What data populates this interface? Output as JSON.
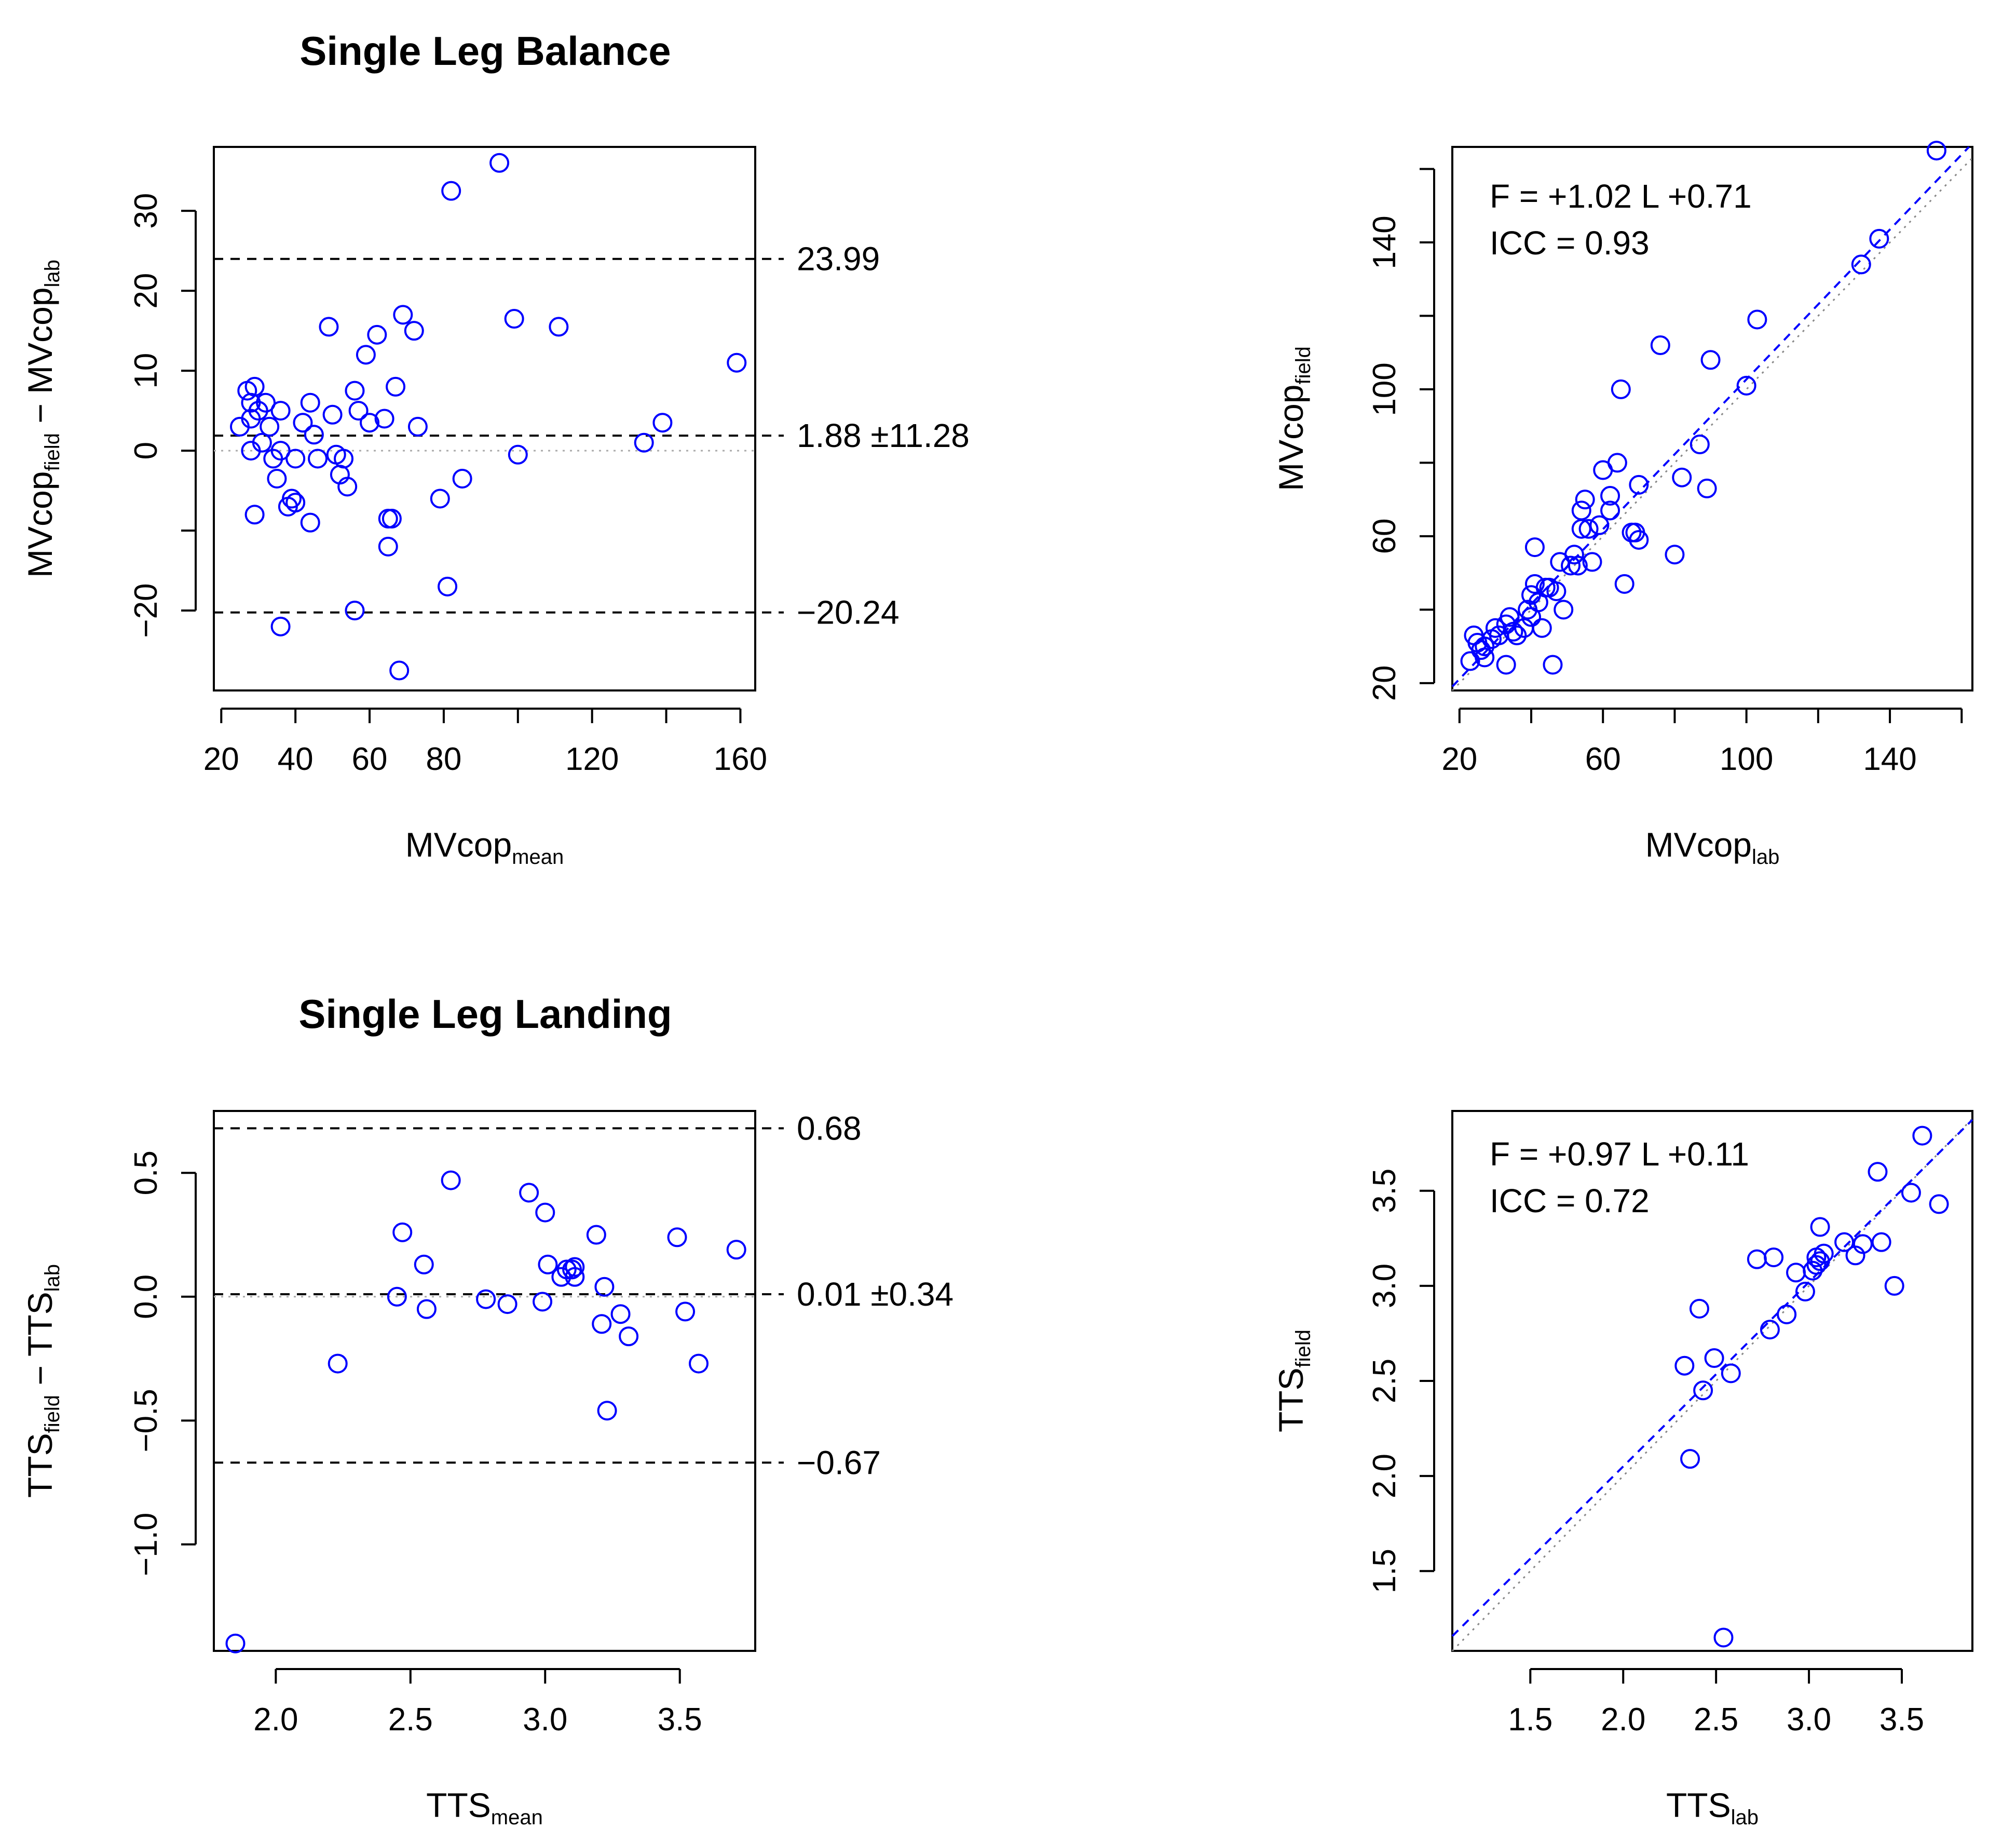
{
  "chart_data": [
    {
      "type": "scatter",
      "title": "Single Leg Balance",
      "xlabel": {
        "main": "MVcop",
        "sub": "mean"
      },
      "ylabel": {
        "main1": "MVcop",
        "sub1": "field",
        "sep": " − ",
        "main2": "MVcop",
        "sub2": "lab"
      },
      "xlim": [
        18,
        164
      ],
      "ylim": [
        -30,
        38
      ],
      "x_ticks": [
        20,
        40,
        60,
        80,
        120,
        160
      ],
      "x_tick_marks": [
        20,
        40,
        60,
        80,
        100,
        120,
        140,
        160
      ],
      "y_ticks": [
        -20,
        -10,
        0,
        10,
        20,
        30
      ],
      "y_tick_labels": [
        "−20",
        "",
        "0",
        "10",
        "20",
        "30"
      ],
      "grid": false,
      "reference_lines": [
        {
          "y": 23.99,
          "label": "23.99",
          "style": "dashed"
        },
        {
          "y": 1.88,
          "label": "1.88 ±11.28",
          "style": "dashed"
        },
        {
          "y": -20.24,
          "label": "−20.24",
          "style": "dashed"
        },
        {
          "y": 0,
          "label": "",
          "style": "dotted"
        }
      ],
      "series": [
        {
          "color": "#0000ff",
          "marker": "open-circle",
          "points": [
            [
              25,
              3
            ],
            [
              27,
              7.5
            ],
            [
              28,
              0
            ],
            [
              28,
              4
            ],
            [
              28,
              6
            ],
            [
              29,
              8
            ],
            [
              29,
              -8
            ],
            [
              30,
              5
            ],
            [
              31,
              1
            ],
            [
              32,
              6
            ],
            [
              33,
              3
            ],
            [
              34,
              -1
            ],
            [
              35,
              -3.5
            ],
            [
              36,
              5
            ],
            [
              36,
              0
            ],
            [
              36,
              -22
            ],
            [
              38,
              -7
            ],
            [
              39,
              -6
            ],
            [
              40,
              -6.5
            ],
            [
              40,
              -1
            ],
            [
              42,
              3.5
            ],
            [
              44,
              6
            ],
            [
              44,
              -9
            ],
            [
              45,
              2
            ],
            [
              46,
              -1
            ],
            [
              49,
              15.5
            ],
            [
              50,
              4.5
            ],
            [
              51,
              -0.5
            ],
            [
              52,
              -3
            ],
            [
              53,
              -1
            ],
            [
              54,
              -4.5
            ],
            [
              56,
              7.5
            ],
            [
              56,
              -20
            ],
            [
              57,
              5
            ],
            [
              59,
              12
            ],
            [
              60,
              3.5
            ],
            [
              62,
              14.5
            ],
            [
              64,
              4
            ],
            [
              65,
              -8.5
            ],
            [
              65,
              -12
            ],
            [
              66,
              -8.5
            ],
            [
              67,
              8
            ],
            [
              68,
              -27.5
            ],
            [
              69,
              17
            ],
            [
              72,
              15
            ],
            [
              73,
              3
            ],
            [
              79,
              -6
            ],
            [
              81,
              -17
            ],
            [
              82,
              32.5
            ],
            [
              85,
              -3.5
            ],
            [
              95,
              36
            ],
            [
              99,
              16.5
            ],
            [
              100,
              -0.5
            ],
            [
              111,
              15.5
            ],
            [
              134,
              1
            ],
            [
              139,
              3.5
            ],
            [
              159,
              11
            ]
          ]
        }
      ]
    },
    {
      "type": "scatter",
      "annotations": [
        "F = +1.02 L +0.71",
        "ICC = 0.93"
      ],
      "xlabel": {
        "main": "MVcop",
        "sub": "lab"
      },
      "ylabel": {
        "main": "MVcop",
        "sub": "field"
      },
      "xlim": [
        18,
        163
      ],
      "ylim": [
        18,
        166
      ],
      "x_ticks": [
        20,
        60,
        100,
        140
      ],
      "x_tick_marks": [
        20,
        40,
        60,
        80,
        100,
        120,
        140,
        160
      ],
      "y_ticks": [
        20,
        60,
        100,
        140
      ],
      "y_tick_marks": [
        20,
        40,
        60,
        80,
        100,
        120,
        140,
        160
      ],
      "grid": false,
      "fit_line": {
        "slope": 1.02,
        "intercept": 0.71,
        "style": "dashed",
        "color": "#0000ff"
      },
      "identity_line": {
        "style": "dotted"
      },
      "series": [
        {
          "color": "#0000ff",
          "marker": "open-circle",
          "points": [
            [
              23,
              26
            ],
            [
              24,
              33
            ],
            [
              25,
              31
            ],
            [
              26,
              29
            ],
            [
              27,
              30
            ],
            [
              27,
              27
            ],
            [
              29,
              32
            ],
            [
              30,
              35
            ],
            [
              31,
              33
            ],
            [
              33,
              25
            ],
            [
              33,
              36
            ],
            [
              34,
              38
            ],
            [
              35,
              34
            ],
            [
              36,
              33
            ],
            [
              38,
              35
            ],
            [
              39,
              40
            ],
            [
              40,
              38
            ],
            [
              40,
              44
            ],
            [
              41,
              57
            ],
            [
              41,
              47
            ],
            [
              42,
              42
            ],
            [
              43,
              35
            ],
            [
              44,
              46
            ],
            [
              45,
              46
            ],
            [
              46,
              25
            ],
            [
              47,
              45
            ],
            [
              48,
              53
            ],
            [
              49,
              40
            ],
            [
              51,
              52
            ],
            [
              52,
              55
            ],
            [
              53,
              52
            ],
            [
              54,
              67
            ],
            [
              54,
              62
            ],
            [
              55,
              70
            ],
            [
              56,
              62
            ],
            [
              57,
              53
            ],
            [
              59,
              63
            ],
            [
              60,
              78
            ],
            [
              62,
              71
            ],
            [
              62,
              67
            ],
            [
              64,
              80
            ],
            [
              65,
              100
            ],
            [
              66,
              47
            ],
            [
              68,
              61
            ],
            [
              69,
              61
            ],
            [
              70,
              74
            ],
            [
              70,
              59
            ],
            [
              76,
              112
            ],
            [
              80,
              55
            ],
            [
              82,
              76
            ],
            [
              87,
              85
            ],
            [
              89,
              73
            ],
            [
              90,
              108
            ],
            [
              100,
              101
            ],
            [
              103,
              119
            ],
            [
              132,
              134
            ],
            [
              137,
              141
            ],
            [
              153,
              165
            ]
          ]
        }
      ]
    },
    {
      "type": "scatter",
      "title": "Single Leg Landing",
      "xlabel": {
        "main": "TTS",
        "sub": "mean"
      },
      "ylabel": {
        "main1": "TTS",
        "sub1": "field",
        "sep": " − ",
        "main2": "TTS",
        "sub2": "lab"
      },
      "xlim": [
        1.77,
        3.78
      ],
      "ylim": [
        -1.43,
        0.75
      ],
      "x_ticks": [
        "2.0",
        "2.5",
        "3.0",
        "3.5"
      ],
      "x_tick_values": [
        2.0,
        2.5,
        3.0,
        3.5
      ],
      "y_ticks": [
        "−1.0",
        "−0.5",
        "0.0",
        "0.5"
      ],
      "y_tick_values": [
        -1.0,
        -0.5,
        0.0,
        0.5
      ],
      "grid": false,
      "reference_lines": [
        {
          "y": 0.68,
          "label": "0.68",
          "style": "dashed"
        },
        {
          "y": 0.01,
          "label": "0.01 ±0.34",
          "style": "dashed"
        },
        {
          "y": -0.67,
          "label": "−0.67",
          "style": "dashed"
        },
        {
          "y": 0,
          "label": "",
          "style": "dotted"
        }
      ],
      "series": [
        {
          "color": "#0000ff",
          "marker": "open-circle",
          "points": [
            [
              1.85,
              -1.4
            ],
            [
              2.23,
              -0.27
            ],
            [
              2.45,
              0.0
            ],
            [
              2.47,
              0.26
            ],
            [
              2.55,
              0.13
            ],
            [
              2.56,
              -0.05
            ],
            [
              2.65,
              0.47
            ],
            [
              2.78,
              -0.01
            ],
            [
              2.86,
              -0.03
            ],
            [
              2.94,
              0.42
            ],
            [
              2.99,
              -0.02
            ],
            [
              3.0,
              0.34
            ],
            [
              3.01,
              0.13
            ],
            [
              3.06,
              0.08
            ],
            [
              3.08,
              0.11
            ],
            [
              3.1,
              0.11
            ],
            [
              3.11,
              0.08
            ],
            [
              3.11,
              0.12
            ],
            [
              3.19,
              0.25
            ],
            [
              3.21,
              -0.11
            ],
            [
              3.22,
              0.04
            ],
            [
              3.23,
              -0.46
            ],
            [
              3.28,
              -0.07
            ],
            [
              3.31,
              -0.16
            ],
            [
              3.49,
              0.24
            ],
            [
              3.52,
              -0.06
            ],
            [
              3.57,
              -0.27
            ],
            [
              3.71,
              0.19
            ]
          ]
        }
      ]
    },
    {
      "type": "scatter",
      "annotations": [
        "F = +0.97 L +0.11",
        "ICC = 0.72"
      ],
      "xlabel": {
        "main": "TTS",
        "sub": "lab"
      },
      "ylabel": {
        "main": "TTS",
        "sub": "field"
      },
      "xlim": [
        1.08,
        3.88
      ],
      "ylim": [
        1.08,
        3.92
      ],
      "x_ticks": [
        "1.5",
        "2.0",
        "2.5",
        "3.0",
        "3.5"
      ],
      "x_tick_values": [
        1.5,
        2.0,
        2.5,
        3.0,
        3.5
      ],
      "y_ticks": [
        "1.5",
        "2.0",
        "2.5",
        "3.0",
        "3.5"
      ],
      "y_tick_values": [
        1.5,
        2.0,
        2.5,
        3.0,
        3.5
      ],
      "grid": false,
      "fit_line": {
        "slope": 0.97,
        "intercept": 0.11,
        "style": "dashed",
        "color": "#0000ff"
      },
      "identity_line": {
        "style": "dotted"
      },
      "series": [
        {
          "color": "#0000ff",
          "marker": "open-circle",
          "points": [
            [
              2.33,
              2.58
            ],
            [
              2.36,
              2.09
            ],
            [
              2.41,
              2.88
            ],
            [
              2.43,
              2.45
            ],
            [
              2.49,
              2.62
            ],
            [
              2.54,
              1.15
            ],
            [
              2.58,
              2.54
            ],
            [
              2.72,
              3.14
            ],
            [
              2.79,
              2.77
            ],
            [
              2.81,
              3.15
            ],
            [
              2.88,
              2.85
            ],
            [
              2.93,
              3.07
            ],
            [
              2.98,
              2.97
            ],
            [
              3.02,
              3.08
            ],
            [
              3.04,
              3.11
            ],
            [
              3.04,
              3.15
            ],
            [
              3.06,
              3.13
            ],
            [
              3.06,
              3.31
            ],
            [
              3.08,
              3.17
            ],
            [
              3.19,
              3.23
            ],
            [
              3.25,
              3.16
            ],
            [
              3.29,
              3.22
            ],
            [
              3.37,
              3.6
            ],
            [
              3.39,
              3.23
            ],
            [
              3.46,
              3.0
            ],
            [
              3.55,
              3.49
            ],
            [
              3.61,
              3.79
            ],
            [
              3.7,
              3.43
            ]
          ]
        }
      ]
    }
  ]
}
